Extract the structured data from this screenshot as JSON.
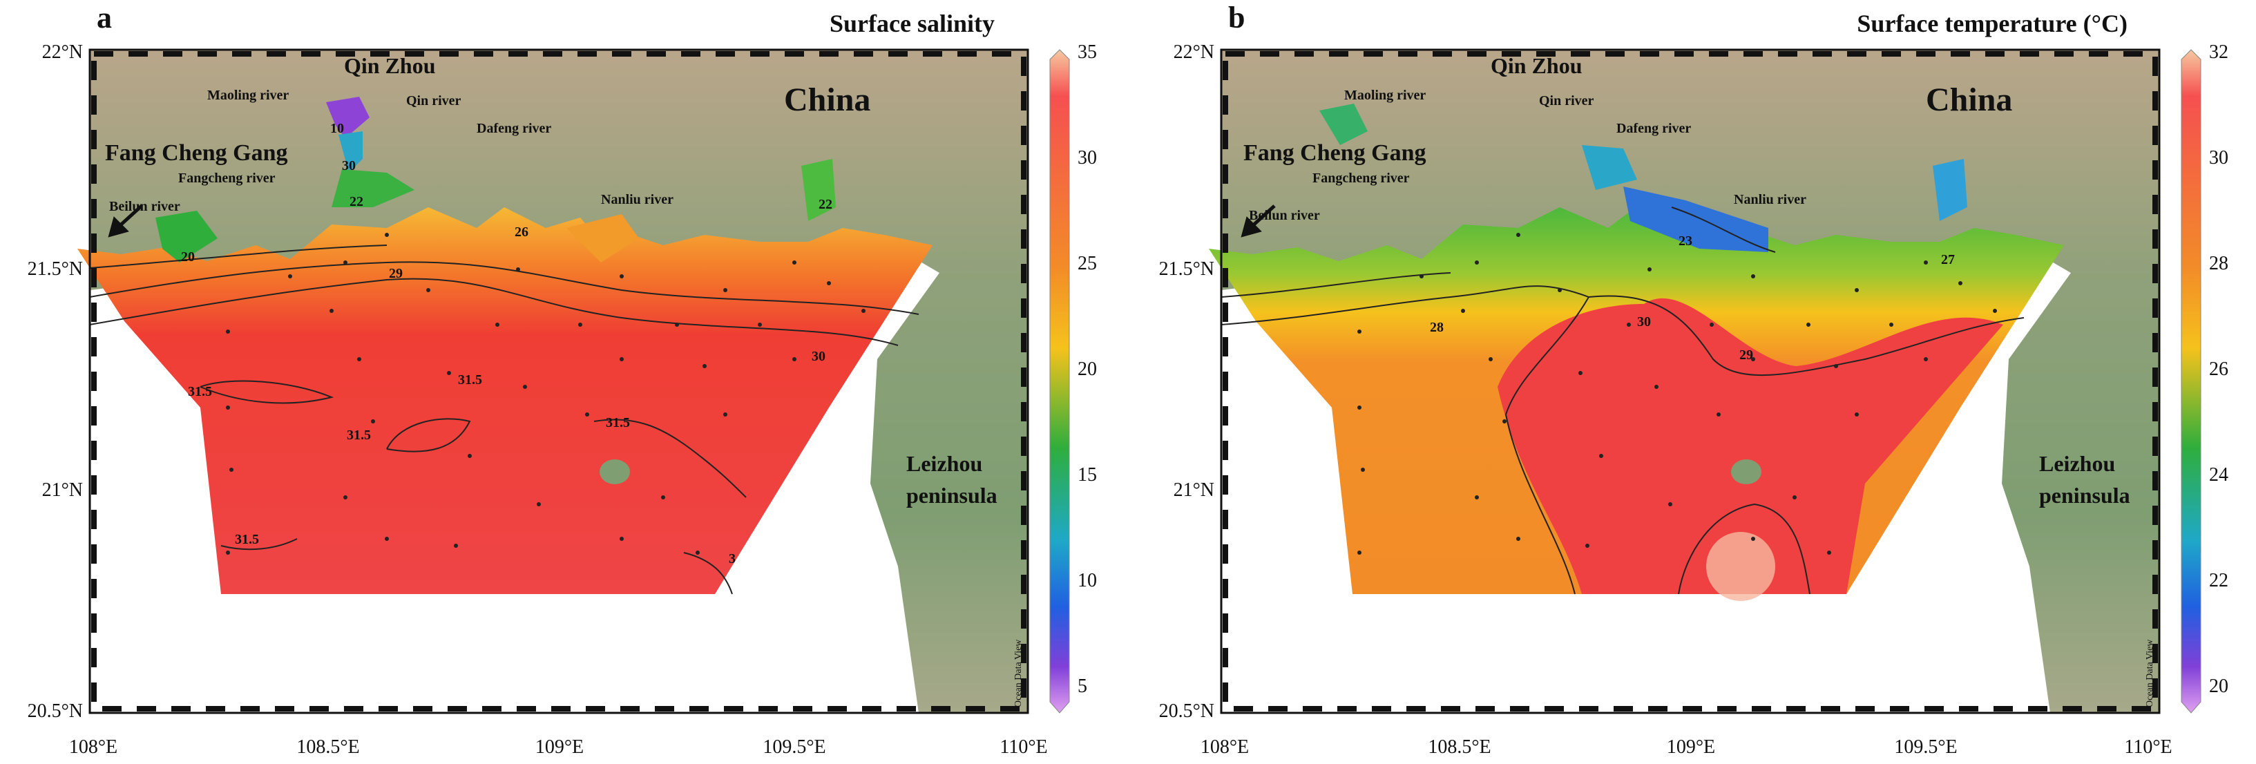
{
  "panels": [
    {
      "letter": "a",
      "title": "Surface salinity",
      "colorbar": {
        "ticks": [
          "35",
          "30",
          "25",
          "20",
          "15",
          "10",
          "5"
        ],
        "credit": "Ocean Data View",
        "stops": [
          "#f7c9a0",
          "#f55050",
          "#f28c28",
          "#f5c21c",
          "#2fae3c",
          "#1fa8c8",
          "#2060e0",
          "#8040d8",
          "#e0a0f0"
        ]
      },
      "x_ticks": [
        "108°E",
        "108.5°E",
        "109°E",
        "109.5°E",
        "110°E"
      ],
      "y_ticks": [
        "22°N",
        "21.5°N",
        "21°N",
        "20.5°N"
      ],
      "place_labels": {
        "qinzhou": "Qin Zhou",
        "china": "China",
        "fangchenggang": "Fang Cheng Gang",
        "maoling": "Maoling river",
        "qin": "Qin river",
        "dafeng": "Dafeng river",
        "fangcheng": "Fangcheng river",
        "nanliu": "Nanliu river",
        "beilun": "Beilun river",
        "leizhou1": "Leizhou",
        "leizhou2": "peninsula"
      },
      "contour_labels": [
        "10",
        "30",
        "22",
        "20",
        "29",
        "26",
        "22",
        "30",
        "31.5",
        "31.5",
        "31.5",
        "31.5",
        "31.5",
        "3"
      ]
    },
    {
      "letter": "b",
      "title": "Surface temperature (°C)",
      "colorbar": {
        "ticks": [
          "32",
          "30",
          "28",
          "26",
          "24",
          "22",
          "20"
        ],
        "credit": "Ocean Data View",
        "stops": [
          "#f7c9a0",
          "#f55050",
          "#f28c28",
          "#f5c21c",
          "#2fae3c",
          "#1fa8c8",
          "#2060e0",
          "#8040d8",
          "#e0a0f0"
        ]
      },
      "x_ticks": [
        "108°E",
        "108.5°E",
        "109°E",
        "109.5°E",
        "110°E"
      ],
      "y_ticks": [
        "22°N",
        "21.5°N",
        "21°N",
        "20.5°N"
      ],
      "place_labels": {
        "qinzhou": "Qin Zhou",
        "china": "China",
        "fangchenggang": "Fang Cheng Gang",
        "maoling": "Maoling river",
        "qin": "Qin river",
        "dafeng": "Dafeng river",
        "fangcheng": "Fangcheng river",
        "nanliu": "Nanliu river",
        "beilun": "Beilun river",
        "leizhou1": "Leizhou",
        "leizhou2": "peninsula"
      },
      "contour_labels": [
        "28",
        "30",
        "29",
        "23",
        "27"
      ]
    }
  ]
}
